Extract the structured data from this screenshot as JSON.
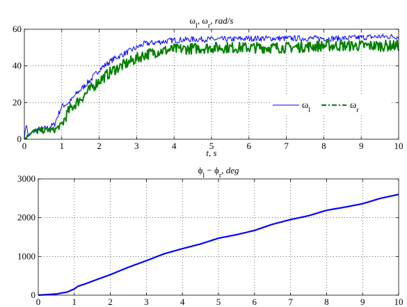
{
  "chart_data": [
    {
      "type": "line",
      "title_parts": [
        "ω",
        "l",
        ", ω",
        "r",
        ",  rad/s"
      ],
      "xlabel": "t, s",
      "ylabel": "",
      "xlim": [
        0,
        10
      ],
      "ylim": [
        0,
        60
      ],
      "xticks": [
        0,
        1,
        2,
        3,
        4,
        5,
        6,
        7,
        8,
        9,
        10
      ],
      "yticks": [
        0,
        20,
        40,
        60
      ],
      "grid": true,
      "legend_placement": "right",
      "series": [
        {
          "name_parts": [
            "ω",
            "l"
          ],
          "color": "#0000ff",
          "style": "solid",
          "x": [
            0,
            0.05,
            0.1,
            0.3,
            0.6,
            0.8,
            1.0,
            1.2,
            1.4,
            1.6,
            1.8,
            2.0,
            2.2,
            2.4,
            2.6,
            2.8,
            3.0,
            3.2,
            3.4,
            3.6,
            3.8,
            4.0,
            4.5,
            5.0,
            5.5,
            6.0,
            6.5,
            7.0,
            7.5,
            8.0,
            8.5,
            9.0,
            9.5,
            10.0
          ],
          "values": [
            0,
            9,
            2,
            5,
            6,
            8,
            18,
            20,
            25,
            29,
            33,
            38,
            41,
            44,
            46,
            48,
            50,
            52,
            52.5,
            53,
            53.5,
            54,
            54.5,
            54.5,
            54.5,
            55,
            55,
            55,
            55,
            55,
            55,
            55.5,
            56,
            56
          ]
        },
        {
          "name_parts": [
            "ω",
            "r"
          ],
          "color": "#008000",
          "style": "dashdot",
          "x": [
            0,
            0.1,
            0.2,
            0.4,
            0.6,
            0.8,
            1.0,
            1.2,
            1.4,
            1.6,
            1.8,
            2.0,
            2.2,
            2.4,
            2.6,
            2.8,
            3.0,
            3.2,
            3.4,
            3.6,
            3.8,
            4.0,
            4.5,
            5.0,
            5.5,
            6.0,
            6.5,
            7.0,
            7.5,
            8.0,
            8.5,
            9.0,
            9.5,
            10.0
          ],
          "values": [
            0,
            2,
            4,
            4.5,
            5,
            5,
            8,
            16,
            20,
            24,
            28,
            32,
            35,
            38,
            40,
            42,
            44,
            46,
            47,
            48,
            48.5,
            49,
            49.5,
            50,
            50,
            50,
            50,
            50,
            50.5,
            51,
            51,
            51,
            51,
            51
          ]
        }
      ]
    },
    {
      "type": "line",
      "title_parts": [
        "ϕ",
        "l",
        " − ϕ",
        "r",
        ",  deg"
      ],
      "xlabel": "",
      "ylabel": "",
      "xlim": [
        0,
        10
      ],
      "ylim": [
        0,
        3000
      ],
      "xticks": [
        0,
        1,
        2,
        3,
        4,
        5,
        6,
        7,
        8,
        9,
        10
      ],
      "yticks": [
        0,
        1000,
        2000,
        3000
      ],
      "grid": true,
      "series": [
        {
          "name": "",
          "color": "#0000ff",
          "style": "solid",
          "x": [
            0,
            0.5,
            0.8,
            1.0,
            1.1,
            1.3,
            1.5,
            2.0,
            2.5,
            3.0,
            3.5,
            4.0,
            4.5,
            5.0,
            5.5,
            6.0,
            6.5,
            7.0,
            7.5,
            8.0,
            8.5,
            9.0,
            9.5,
            10.0
          ],
          "values": [
            0,
            30,
            80,
            160,
            230,
            290,
            360,
            530,
            720,
            890,
            1070,
            1200,
            1320,
            1470,
            1560,
            1670,
            1830,
            1950,
            2050,
            2190,
            2270,
            2360,
            2500,
            2600
          ]
        }
      ]
    }
  ]
}
